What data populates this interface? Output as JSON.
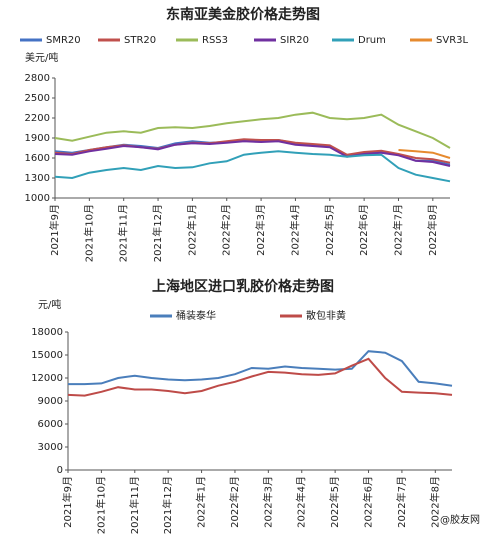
{
  "chart_data": [
    {
      "type": "line",
      "title": "东南亚美金胶价格走势图",
      "ylabel": "美元/吨",
      "categories": [
        "2021年9月",
        null,
        "2021年10月",
        null,
        "2021年11月",
        null,
        "2021年12月",
        null,
        "2022年1月",
        null,
        "2022年2月",
        null,
        "2022年3月",
        null,
        "2022年4月",
        null,
        "2022年5月",
        null,
        "2022年6月",
        null,
        "2022年7月",
        null,
        "2022年8月",
        null
      ],
      "ylim": [
        1000,
        2800
      ],
      "yticks": [
        1000,
        1300,
        1600,
        1900,
        2200,
        2500,
        2800
      ],
      "series": [
        {
          "name": "SMR20",
          "color": "#4472c4",
          "values": [
            1700,
            1680,
            1720,
            1760,
            1800,
            1780,
            1750,
            1820,
            1850,
            1830,
            1840,
            1860,
            1850,
            1870,
            1820,
            1800,
            1780,
            1640,
            1680,
            1700,
            1650,
            1560,
            1560,
            1500
          ]
        },
        {
          "name": "STR20",
          "color": "#c0504d",
          "values": [
            1680,
            1660,
            1720,
            1760,
            1790,
            1760,
            1740,
            1800,
            1830,
            1820,
            1850,
            1880,
            1870,
            1870,
            1830,
            1810,
            1790,
            1650,
            1690,
            1710,
            1660,
            1600,
            1580,
            1530
          ]
        },
        {
          "name": "RSS3",
          "color": "#9bbb59",
          "values": [
            1900,
            1860,
            1920,
            1980,
            2000,
            1980,
            2050,
            2060,
            2050,
            2080,
            2120,
            2150,
            2180,
            2200,
            2250,
            2280,
            2200,
            2180,
            2200,
            2250,
            2100,
            2000,
            1900,
            1750
          ]
        },
        {
          "name": "SIR20",
          "color": "#7030a0",
          "values": [
            1660,
            1650,
            1700,
            1740,
            1780,
            1760,
            1730,
            1800,
            1820,
            1810,
            1830,
            1850,
            1840,
            1850,
            1800,
            1780,
            1760,
            1620,
            1660,
            1680,
            1640,
            1560,
            1540,
            1480
          ]
        },
        {
          "name": "Drum",
          "color": "#31a0b8",
          "values": [
            1320,
            1300,
            1380,
            1420,
            1450,
            1420,
            1480,
            1450,
            1460,
            1520,
            1550,
            1650,
            1680,
            1700,
            1680,
            1660,
            1650,
            1620,
            1640,
            1650,
            1450,
            1350,
            1300,
            1250
          ]
        },
        {
          "name": "SVR3L",
          "color": "#e68a2e",
          "values": [
            null,
            null,
            null,
            null,
            null,
            null,
            null,
            null,
            null,
            null,
            null,
            null,
            null,
            null,
            null,
            null,
            null,
            null,
            null,
            null,
            1720,
            1700,
            1680,
            1600
          ]
        }
      ]
    },
    {
      "type": "line",
      "title": "上海地区进口乳胶价格走势图",
      "ylabel": "元/吨",
      "categories": [
        "2021年9月",
        null,
        "2021年10月",
        null,
        "2021年11月",
        null,
        "2021年12月",
        null,
        "2022年1月",
        null,
        "2022年2月",
        null,
        "2022年3月",
        null,
        "2022年4月",
        null,
        "2022年5月",
        null,
        "2022年6月",
        null,
        "2022年7月",
        null,
        "2022年8月",
        null
      ],
      "ylim": [
        0,
        18000
      ],
      "yticks": [
        0,
        3000,
        6000,
        9000,
        12000,
        15000,
        18000
      ],
      "series": [
        {
          "name": "桶装泰华",
          "color": "#4a7ebb",
          "values": [
            11200,
            11200,
            11300,
            12000,
            12300,
            12000,
            11800,
            11700,
            11800,
            12000,
            12500,
            13300,
            13200,
            13500,
            13300,
            13200,
            13100,
            13200,
            15500,
            15300,
            14200,
            11500,
            11300,
            11000
          ]
        },
        {
          "name": "散包非黄",
          "color": "#be4b48",
          "values": [
            9800,
            9700,
            10200,
            10800,
            10500,
            10500,
            10300,
            10000,
            10300,
            11000,
            11500,
            12200,
            12800,
            12700,
            12500,
            12400,
            12600,
            13600,
            14500,
            12000,
            10200,
            10100,
            10000,
            9800
          ]
        }
      ],
      "watermark": "@胶友网"
    }
  ]
}
